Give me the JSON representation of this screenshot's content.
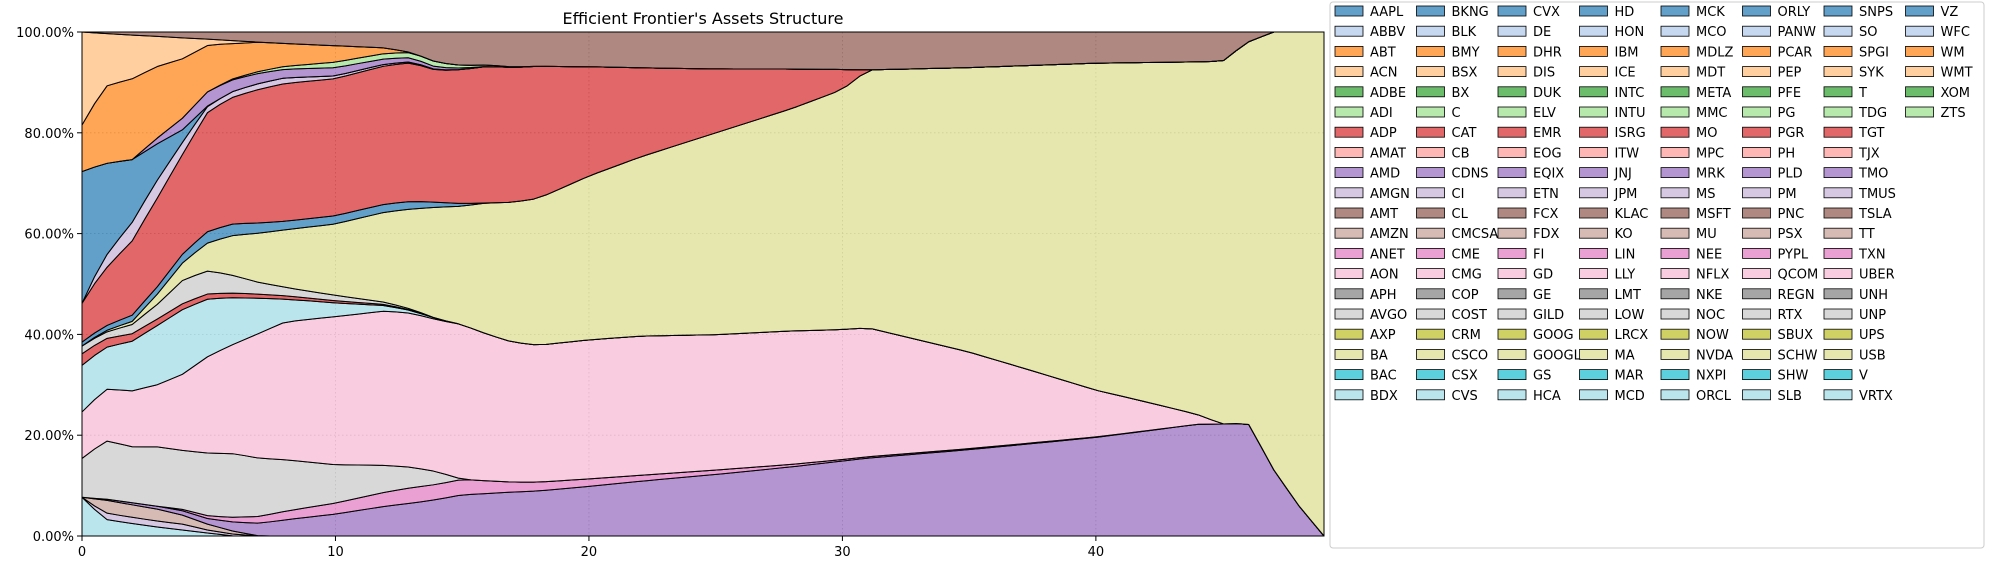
{
  "chart_data": {
    "type": "area",
    "stacked": true,
    "title": "Efficient Frontier's Assets Structure",
    "xlabel": "",
    "ylabel": "",
    "xlim": [
      0,
      49
    ],
    "ylim": [
      0,
      1
    ],
    "x_ticks": [
      0,
      10,
      20,
      30,
      40
    ],
    "x_tick_labels": [
      "0",
      "10",
      "20",
      "30",
      "40"
    ],
    "y_ticks": [
      0,
      0.2,
      0.4,
      0.6,
      0.8,
      1.0
    ],
    "y_tick_labels": [
      "0.00%",
      "20.00%",
      "40.00%",
      "60.00%",
      "80.00%",
      "100.00%"
    ],
    "grid": true,
    "legend_position": "right-outside",
    "legend_columns": 8,
    "assets": [
      "AAPL",
      "ABBV",
      "ABT",
      "ACN",
      "ADBE",
      "ADI",
      "ADP",
      "AMAT",
      "AMD",
      "AMGN",
      "AMT",
      "AMZN",
      "ANET",
      "AON",
      "APH",
      "AVGO",
      "AXP",
      "BA",
      "BAC",
      "BDX",
      "BKNG",
      "BLK",
      "BMY",
      "BSX",
      "BX",
      "C",
      "CAT",
      "CB",
      "CDNS",
      "CI",
      "CL",
      "CMCSA",
      "CME",
      "CMG",
      "COP",
      "COST",
      "CRM",
      "CSCO",
      "CSX",
      "CVS",
      "CVX",
      "DE",
      "DHR",
      "DIS",
      "DUK",
      "ELV",
      "EMR",
      "EOG",
      "EQIX",
      "ETN",
      "FCX",
      "FDX",
      "FI",
      "GD",
      "GE",
      "GILD",
      "GOOG",
      "GOOGL",
      "GS",
      "HCA",
      "HD",
      "HON",
      "IBM",
      "ICE",
      "INTC",
      "INTU",
      "ISRG",
      "ITW",
      "JNJ",
      "JPM",
      "KLAC",
      "KO",
      "LIN",
      "LLY",
      "LMT",
      "LOW",
      "LRCX",
      "MA",
      "MAR",
      "MCD",
      "MCK",
      "MCO",
      "MDLZ",
      "MDT",
      "META",
      "MMC",
      "MO",
      "MPC",
      "MRK",
      "MS",
      "MSFT",
      "MU",
      "NEE",
      "NFLX",
      "NKE",
      "NOC",
      "NOW",
      "NVDA",
      "NXPI",
      "ORCL",
      "ORLY",
      "PANW",
      "PCAR",
      "PEP",
      "PFE",
      "PG",
      "PGR",
      "PH",
      "PLD",
      "PM",
      "PNC",
      "PSX",
      "PYPL",
      "QCOM",
      "REGN",
      "RTX",
      "SBUX",
      "SCHW",
      "SHW",
      "SLB",
      "SNPS",
      "SO",
      "SPGI",
      "SYK",
      "T",
      "TDG",
      "TGT",
      "TJX",
      "TMO",
      "TMUS",
      "TSLA",
      "TT",
      "TXN",
      "UBER",
      "UNH",
      "UNP",
      "UPS",
      "USB",
      "V",
      "VRTX",
      "VZ",
      "WFC",
      "WM",
      "WMT",
      "XOM",
      "ZTS"
    ],
    "palette": [
      "#1f77b4",
      "#aec7e8",
      "#ff7f0e",
      "#ffbb78",
      "#2ca02c",
      "#98df8a",
      "#d62728",
      "#ff9896",
      "#9467bd",
      "#c5b0d5",
      "#8c564b",
      "#c49c94",
      "#e377c2",
      "#f7b6d2",
      "#7f7f7f",
      "#c7c7c7",
      "#bcbd22",
      "#dbdb8d",
      "#17becf",
      "#9edae5"
    ],
    "series": [
      {
        "name": "BDX",
        "x": [
          0,
          1,
          2,
          3,
          4,
          5,
          6,
          7,
          8,
          9,
          10
        ],
        "values": [
          0.05,
          0.025,
          0.02,
          0.015,
          0.01,
          0.005,
          0,
          0,
          0,
          0,
          0
        ]
      },
      {
        "name": "AMGN",
        "x": [
          0,
          1,
          2,
          3,
          4,
          5,
          6,
          7
        ],
        "values": [
          0,
          0.01,
          0.01,
          0.01,
          0.01,
          0.005,
          0.003,
          0
        ]
      },
      {
        "name": "AMZN",
        "x": [
          0,
          1,
          2,
          3,
          4,
          5,
          6,
          7
        ],
        "values": [
          0,
          0.02,
          0.02,
          0.02,
          0.015,
          0.01,
          0.005,
          0
        ]
      },
      {
        "name": "TMO",
        "x": [
          0,
          3,
          5,
          10,
          15,
          20,
          25,
          30,
          35,
          40,
          45,
          46,
          47,
          48,
          49
        ],
        "values": [
          0,
          0.005,
          0.01,
          0.04,
          0.08,
          0.1,
          0.125,
          0.15,
          0.17,
          0.19,
          0.21,
          0.225,
          0.13,
          0.06,
          0
        ]
      },
      {
        "name": "LIN",
        "x": [
          0,
          3,
          5,
          8,
          10,
          13,
          15,
          16,
          17,
          18,
          20,
          22,
          25,
          28,
          30,
          35,
          40,
          44,
          45,
          46,
          47,
          49
        ],
        "values": [
          0,
          0,
          0.005,
          0.015,
          0.02,
          0.03,
          0.03,
          0.025,
          0.02,
          0.018,
          0.015,
          0.012,
          0.009,
          0.005,
          0.003,
          0.002,
          0.001,
          0,
          0,
          0,
          0,
          0
        ]
      },
      {
        "name": "AVGO",
        "x": [
          0,
          1,
          2,
          3,
          4,
          5,
          6,
          7,
          8,
          9,
          10,
          11,
          12,
          13,
          14,
          15,
          16
        ],
        "values": [
          0.05,
          0.09,
          0.09,
          0.1,
          0.1,
          0.11,
          0.11,
          0.1,
          0.09,
          0.08,
          0.07,
          0.06,
          0.05,
          0.04,
          0.025,
          0,
          0
        ]
      },
      {
        "name": "AON",
        "x": [
          0,
          1,
          2,
          3,
          4,
          5,
          6,
          8,
          10,
          13,
          15,
          16,
          17,
          18,
          20,
          22,
          25,
          28,
          30,
          31,
          35,
          40,
          45,
          46,
          49
        ],
        "values": [
          0.06,
          0.08,
          0.09,
          0.105,
          0.13,
          0.17,
          0.19,
          0.24,
          0.27,
          0.3,
          0.3,
          0.29,
          0.28,
          0.28,
          0.28,
          0.28,
          0.275,
          0.27,
          0.26,
          0.255,
          0.19,
          0.09,
          0,
          0,
          0
        ]
      },
      {
        "name": "HCA",
        "x": [
          0,
          1,
          2,
          3,
          4,
          5,
          6,
          7,
          8,
          10,
          12,
          13,
          14,
          15,
          16
        ],
        "values": [
          0.06,
          0.065,
          0.08,
          0.1,
          0.11,
          0.1,
          0.08,
          0.06,
          0.04,
          0.025,
          0.01,
          0.005,
          0.002,
          0,
          0
        ]
      },
      {
        "name": "MO",
        "x": [
          0,
          2,
          4,
          6,
          8,
          10,
          12,
          13,
          14,
          15,
          16
        ],
        "values": [
          0.015,
          0.012,
          0.01,
          0.008,
          0.006,
          0.004,
          0.002,
          0.001,
          0,
          0,
          0
        ]
      },
      {
        "name": "COST",
        "x": [
          0,
          1,
          2,
          3,
          4,
          5,
          6,
          7,
          8,
          9,
          10,
          11,
          12,
          13,
          14,
          15,
          16
        ],
        "values": [
          0.01,
          0.01,
          0.015,
          0.025,
          0.04,
          0.04,
          0.03,
          0.02,
          0.015,
          0.012,
          0.01,
          0.007,
          0.004,
          0.002,
          0,
          0,
          0
        ]
      },
      {
        "name": "GOOGL",
        "x": [
          0,
          2,
          4,
          5,
          6,
          8,
          10,
          12,
          14,
          15,
          16,
          18,
          20,
          22,
          25,
          28,
          30,
          31,
          35,
          40,
          44,
          45,
          46,
          47,
          48,
          49
        ],
        "values": [
          0,
          0.005,
          0.03,
          0.05,
          0.07,
          0.1,
          0.13,
          0.17,
          0.22,
          0.23,
          0.26,
          0.3,
          0.33,
          0.36,
          0.41,
          0.45,
          0.48,
          0.51,
          0.56,
          0.63,
          0.65,
          0.68,
          0.76,
          0.85,
          0.93,
          1.0
        ]
      },
      {
        "name": "CVX",
        "x": [
          0,
          2,
          4,
          5,
          6,
          8,
          10,
          12,
          13,
          14,
          15,
          16
        ],
        "values": [
          0.005,
          0.01,
          0.015,
          0.02,
          0.02,
          0.015,
          0.015,
          0.015,
          0.015,
          0.01,
          0.005,
          0
        ]
      },
      {
        "name": "CAT",
        "x": [
          0,
          1,
          2,
          3,
          4,
          5,
          6,
          8,
          10,
          12,
          13,
          14,
          15,
          16,
          17,
          18,
          20,
          22,
          25,
          28,
          30,
          31,
          32
        ],
        "values": [
          0.05,
          0.09,
          0.12,
          0.15,
          0.17,
          0.21,
          0.22,
          0.24,
          0.25,
          0.26,
          0.27,
          0.26,
          0.26,
          0.27,
          0.27,
          0.27,
          0.22,
          0.18,
          0.13,
          0.08,
          0.04,
          0,
          0
        ]
      },
      {
        "name": "CI",
        "x": [
          0,
          1,
          2,
          3,
          4,
          5,
          6,
          8,
          10,
          12,
          13,
          14,
          15,
          16
        ],
        "values": [
          0,
          0.02,
          0.03,
          0.03,
          0.02,
          0.01,
          0.01,
          0.01,
          0.005,
          0.003,
          0.002,
          0.001,
          0,
          0
        ]
      },
      {
        "name": "AAPL",
        "x": [
          0,
          1,
          2,
          3,
          4,
          5,
          6
        ],
        "values": [
          0.17,
          0.14,
          0.1,
          0.06,
          0.02,
          0,
          0
        ]
      },
      {
        "name": "CDNS",
        "x": [
          0,
          1,
          2,
          3,
          4,
          5,
          6,
          8,
          10,
          12,
          13,
          14,
          15,
          16
        ],
        "values": [
          0,
          0,
          0,
          0.01,
          0.02,
          0.025,
          0.02,
          0.015,
          0.015,
          0.01,
          0.008,
          0.005,
          0.003,
          0
        ]
      },
      {
        "name": "ELV",
        "x": [
          0,
          5,
          8,
          10,
          12,
          13,
          14,
          15,
          16,
          17,
          18,
          20
        ],
        "values": [
          0,
          0,
          0.005,
          0.01,
          0.01,
          0.01,
          0.01,
          0.005,
          0.003,
          0.001,
          0,
          0
        ]
      },
      {
        "name": "BMY",
        "x": [
          0,
          1,
          2,
          3,
          4,
          5,
          6,
          8,
          10,
          12,
          13,
          14,
          15,
          16
        ],
        "values": [
          0.06,
          0.12,
          0.13,
          0.12,
          0.1,
          0.08,
          0.06,
          0.04,
          0.03,
          0.01,
          0,
          0,
          0,
          0
        ]
      },
      {
        "name": "ACN",
        "x": [
          0,
          1,
          2,
          3,
          4,
          5,
          6,
          7
        ],
        "values": [
          0.12,
          0.08,
          0.07,
          0.05,
          0.035,
          0.01,
          0.005,
          0
        ]
      },
      {
        "name": "TSLA",
        "x": [
          0,
          4,
          6,
          8,
          10,
          12,
          13,
          14,
          15,
          16,
          17,
          18,
          20,
          25,
          30,
          31,
          35,
          40,
          44,
          45,
          46,
          47,
          48,
          49
        ],
        "values": [
          0,
          0.01,
          0.015,
          0.02,
          0.025,
          0.03,
          0.04,
          0.06,
          0.065,
          0.065,
          0.07,
          0.07,
          0.07,
          0.075,
          0.075,
          0.075,
          0.07,
          0.06,
          0.055,
          0.055,
          0.02,
          0,
          0,
          0
        ]
      }
    ]
  }
}
